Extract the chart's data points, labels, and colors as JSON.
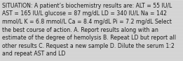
{
  "text": "SITUATION: A patient’s biochemistry results are: ALT = 55 IU/L\nAST = 165 IU/L glucose = 87 mg/dL LD = 340 IU/L Na = 142\nmmol/L K = 6.8 mmol/L Ca = 8.4 mg/dL Pi = 7.2 mg/dL Select\nthe best course of action. A. Report results along with an\nestimate of the degree of hemolysis B. Repeat LD but report all\nother results C. Request a new sample D. Dilute the serum 1:2\nand repeat AST and LD",
  "background_color": "#d8d8d8",
  "stripe_color": "#c8c8c8",
  "text_color": "#1a1a1a",
  "font_size": 5.6,
  "fig_width": 2.61,
  "fig_height": 0.88,
  "dpi": 100
}
